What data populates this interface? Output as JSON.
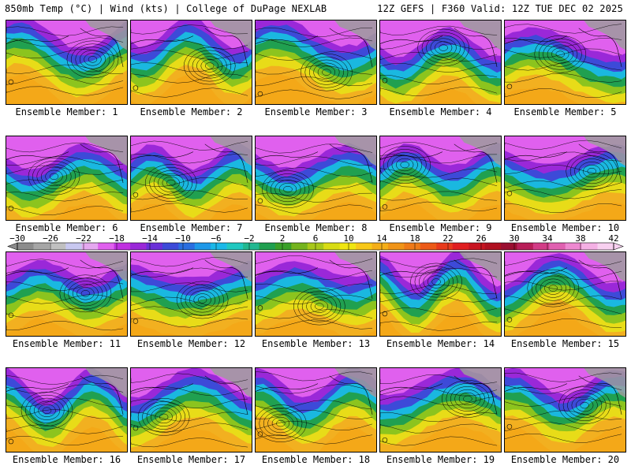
{
  "header": {
    "left": "850mb Temp (°C) | Wind (kts) | College of DuPage NEXLAB",
    "right": "12Z GEFS | F360 Valid: 12Z TUE DEC 02 2025"
  },
  "members": [
    {
      "label": "Ensemble Member: 1"
    },
    {
      "label": "Ensemble Member: 2"
    },
    {
      "label": "Ensemble Member: 3"
    },
    {
      "label": "Ensemble Member: 4"
    },
    {
      "label": "Ensemble Member: 5"
    },
    {
      "label": "Ensemble Member: 6"
    },
    {
      "label": "Ensemble Member: 7"
    },
    {
      "label": "Ensemble Member: 8"
    },
    {
      "label": "Ensemble Member: 9"
    },
    {
      "label": "Ensemble Member: 10"
    },
    {
      "label": "Ensemble Member: 11"
    },
    {
      "label": "Ensemble Member: 12"
    },
    {
      "label": "Ensemble Member: 13"
    },
    {
      "label": "Ensemble Member: 14"
    },
    {
      "label": "Ensemble Member: 15"
    },
    {
      "label": "Ensemble Member: 16"
    },
    {
      "label": "Ensemble Member: 17"
    },
    {
      "label": "Ensemble Member: 18"
    },
    {
      "label": "Ensemble Member: 19"
    },
    {
      "label": "Ensemble Member: 20"
    }
  ],
  "colorbar": {
    "labels": [
      "−30",
      "−26",
      "−22",
      "−18",
      "−14",
      "−10",
      "−6",
      "−2",
      "2",
      "6",
      "10",
      "14",
      "18",
      "22",
      "26",
      "30",
      "34",
      "38",
      "42"
    ],
    "colors": [
      "#8c8c8c",
      "#a6a6a6",
      "#c0c0c0",
      "#c8c8f0",
      "#e5a8f0",
      "#e060ee",
      "#c030e0",
      "#9a28d8",
      "#6a30d8",
      "#3d4ad8",
      "#2a6ee0",
      "#1e98e8",
      "#1ab8e8",
      "#20c8c0",
      "#22b890",
      "#20a050",
      "#3aa028",
      "#74b41e",
      "#a8c81a",
      "#d8dc14",
      "#f0e610",
      "#f8c818",
      "#f4ae18",
      "#f09418",
      "#ee7a18",
      "#ec5a18",
      "#e83a1c",
      "#e01e20",
      "#c81420",
      "#b01020",
      "#9a0e30",
      "#b81e58",
      "#d23c86",
      "#e060b0",
      "#ee88d0",
      "#f4b0e4",
      "#f8d0f0"
    ]
  }
}
